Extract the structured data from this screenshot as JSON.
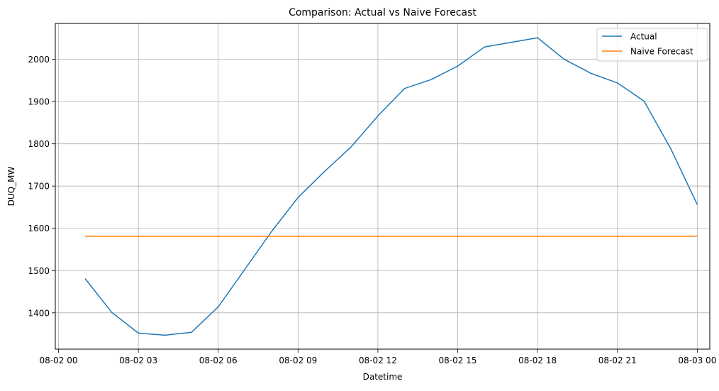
{
  "chart_data": {
    "type": "line",
    "title": "Comparison: Actual vs Naive Forecast",
    "xlabel": "Datetime",
    "ylabel": "DUQ_MW",
    "x_ticks": [
      "08-02 00",
      "08-02 03",
      "08-02 06",
      "08-02 09",
      "08-02 12",
      "08-02 15",
      "08-02 18",
      "08-02 21",
      "08-03 00"
    ],
    "y_ticks": [
      1400,
      1500,
      1600,
      1700,
      1800,
      1900,
      2000
    ],
    "xlim_hours": [
      -0.12,
      24.47
    ],
    "ylim": [
      1314,
      2085
    ],
    "grid": true,
    "legend_position": "top-right",
    "x_hours": [
      1,
      2,
      3,
      4,
      5,
      6,
      7,
      8,
      9,
      10,
      11,
      12,
      13,
      14,
      15,
      16,
      17,
      18,
      19,
      20,
      21,
      22,
      23,
      24
    ],
    "series": [
      {
        "name": "Actual",
        "color": "#1f77b4",
        "values": [
          1481,
          1401,
          1352,
          1347,
          1354,
          1414,
          1503,
          1592,
          1673,
          1735,
          1793,
          1866,
          1931,
          1952,
          1984,
          2029,
          2040,
          2051,
          2000,
          1967,
          1944,
          1901,
          1789,
          1656
        ]
      },
      {
        "name": "Naive Forecast",
        "color": "#ff7f0e",
        "values": [
          1581,
          1581,
          1581,
          1581,
          1581,
          1581,
          1581,
          1581,
          1581,
          1581,
          1581,
          1581,
          1581,
          1581,
          1581,
          1581,
          1581,
          1581,
          1581,
          1581,
          1581,
          1581,
          1581,
          1581
        ]
      }
    ]
  }
}
